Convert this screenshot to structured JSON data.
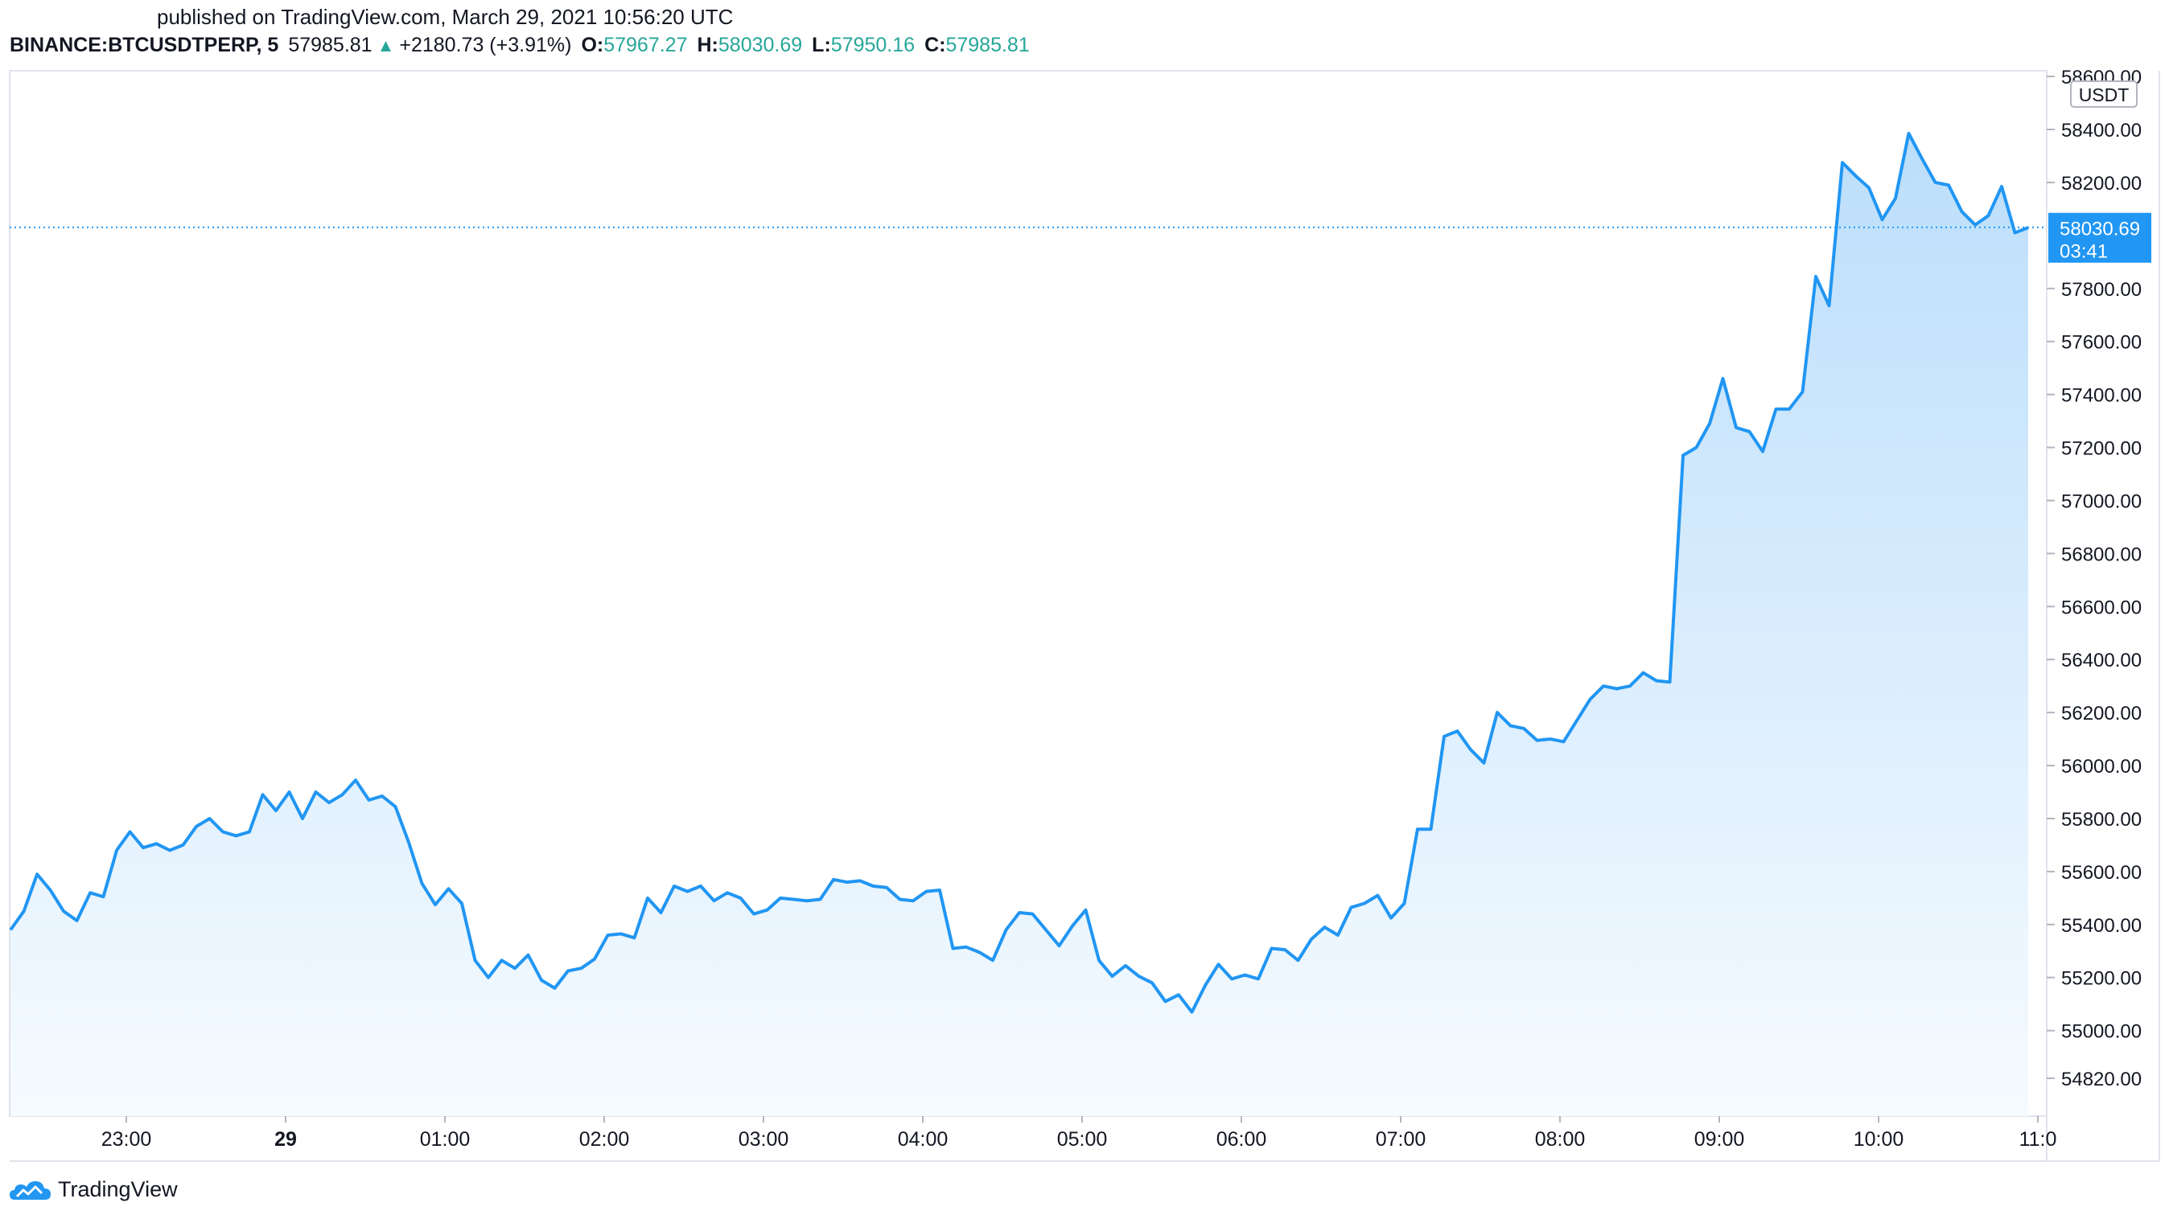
{
  "header": {
    "published_text": "published on TradingView.com, March 29, 2021 10:56:20 UTC"
  },
  "legend": {
    "symbol": "BINANCE:BTCUSDTPERP, 5",
    "last": "57985.81",
    "arrow": "▲",
    "change": "+2180.73 (+3.91%)",
    "open_label": "O:",
    "open": "57967.27",
    "high_label": "H:",
    "high": "58030.69",
    "low_label": "L:",
    "low": "57950.16",
    "close_label": "C:",
    "close": "57985.81"
  },
  "footer": {
    "brand": "TradingView"
  },
  "colors": {
    "line": "#2196f3",
    "area_top": "#bbdefb",
    "area_bottom": "#f6fbff",
    "positive": "#26a69a",
    "axis_text": "#131722",
    "price_label_bg": "#2196f3"
  },
  "chart_data": {
    "type": "area",
    "currency_label": "USDT",
    "price_label": "58030.69",
    "price_label_timer": "03:41",
    "current_price": 58030.69,
    "ylim": [
      54760,
      58700
    ],
    "y_ticks": [
      54820,
      55000,
      55200,
      55400,
      55600,
      55800,
      56000,
      56200,
      56400,
      56600,
      56800,
      57000,
      57200,
      57400,
      57600,
      57800,
      58200,
      58400,
      58600
    ],
    "y_tick_labels": [
      "54820.00",
      "55000.00",
      "55200.00",
      "55400.00",
      "55600.00",
      "55800.00",
      "56000.00",
      "56200.00",
      "56400.00",
      "56600.00",
      "56800.00",
      "57000.00",
      "57200.00",
      "57400.00",
      "57600.00",
      "57800.00",
      "58200.00",
      "58400.00",
      "58600.00"
    ],
    "x_ticks": [
      {
        "label": "23:00",
        "t": 23.0,
        "bold": false
      },
      {
        "label": "29",
        "t": 24.0,
        "bold": true
      },
      {
        "label": "01:00",
        "t": 25.0,
        "bold": false
      },
      {
        "label": "02:00",
        "t": 26.0,
        "bold": false
      },
      {
        "label": "03:00",
        "t": 27.0,
        "bold": false
      },
      {
        "label": "04:00",
        "t": 28.0,
        "bold": false
      },
      {
        "label": "05:00",
        "t": 29.0,
        "bold": false
      },
      {
        "label": "06:00",
        "t": 30.0,
        "bold": false
      },
      {
        "label": "07:00",
        "t": 31.0,
        "bold": false
      },
      {
        "label": "08:00",
        "t": 32.0,
        "bold": false
      },
      {
        "label": "09:00",
        "t": 33.0,
        "bold": false
      },
      {
        "label": "10:00",
        "t": 34.0,
        "bold": false
      },
      {
        "label": "11:0",
        "t": 35.0,
        "bold": false
      }
    ],
    "x_range": [
      22.273,
      35.096
    ],
    "series": [
      {
        "interval_hours": 0.08333,
        "start_t": 22.273,
        "values": [
          55380,
          55450,
          55590,
          55530,
          55450,
          55415,
          55520,
          55505,
          55680,
          55750,
          55690,
          55705,
          55680,
          55700,
          55770,
          55800,
          55750,
          55735,
          55750,
          55890,
          55830,
          55900,
          55800,
          55900,
          55860,
          55890,
          55945,
          55870,
          55885,
          55845,
          55710,
          55555,
          55475,
          55535,
          55480,
          55265,
          55200,
          55265,
          55235,
          55285,
          55190,
          55160,
          55225,
          55235,
          55270,
          55360,
          55365,
          55350,
          55500,
          55445,
          55545,
          55525,
          55545,
          55490,
          55520,
          55500,
          55440,
          55455,
          55500,
          55495,
          55490,
          55495,
          55570,
          55560,
          55565,
          55545,
          55540,
          55495,
          55490,
          55525,
          55530,
          55310,
          55315,
          55295,
          55265,
          55380,
          55445,
          55440,
          55380,
          55320,
          55395,
          55455,
          55265,
          55205,
          55245,
          55205,
          55180,
          55110,
          55135,
          55070,
          55170,
          55250,
          55195,
          55210,
          55195,
          55310,
          55305,
          55265,
          55345,
          55390,
          55360,
          55465,
          55480,
          55510,
          55425,
          55480,
          55760,
          55760,
          56110,
          56130,
          56060,
          56010,
          56200,
          56150,
          56140,
          56095,
          56100,
          56090,
          56170,
          56250,
          56300,
          56290,
          56300,
          56350,
          56320,
          56315,
          57170,
          57200,
          57290,
          57460,
          57275,
          57260,
          57185,
          57345,
          57345,
          57410,
          57845,
          57735,
          58275,
          58225,
          58180,
          58060,
          58140,
          58385,
          58290,
          58200,
          58190,
          58090,
          58040,
          58075,
          58185,
          58010,
          58030
        ]
      }
    ]
  }
}
